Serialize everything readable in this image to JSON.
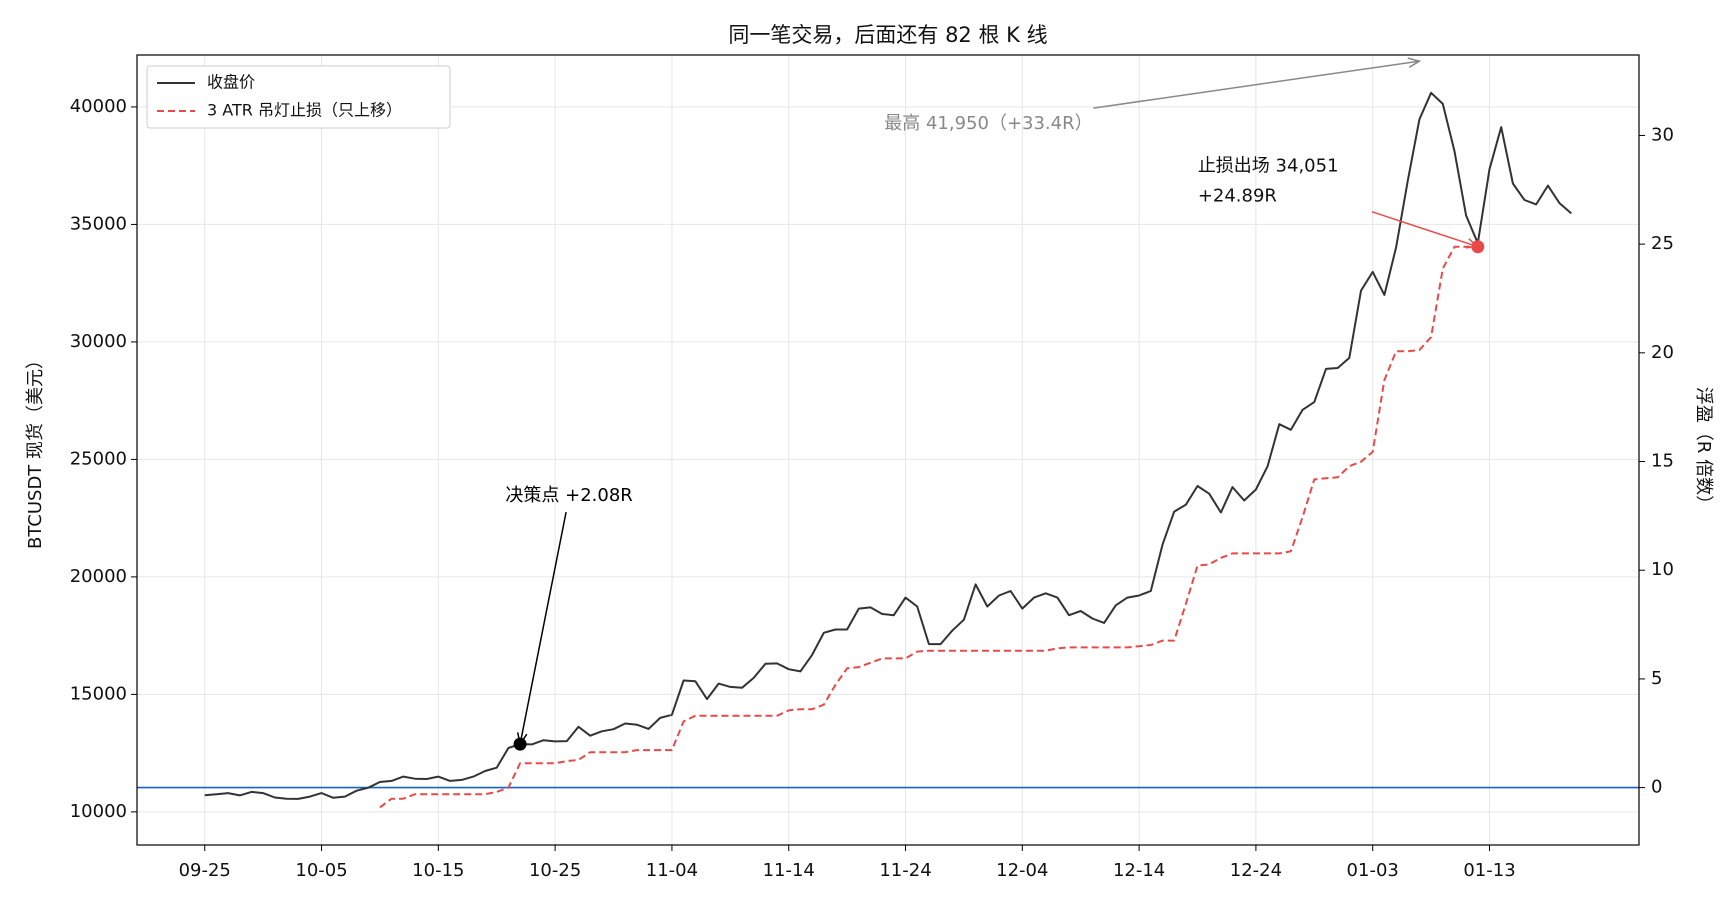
{
  "chart_data": {
    "type": "line",
    "title": "同一笔交易，后面还有 82 根 K 线",
    "ylabel": "BTCUSDT 现货（美元）",
    "y2label": "浮盈（R 倍数）",
    "x": [
      "09-25",
      "09-26",
      "09-27",
      "09-28",
      "09-29",
      "09-30",
      "10-01",
      "10-02",
      "10-03",
      "10-04",
      "10-05",
      "10-06",
      "10-07",
      "10-08",
      "10-09",
      "10-10",
      "10-11",
      "10-12",
      "10-13",
      "10-14",
      "10-15",
      "10-16",
      "10-17",
      "10-18",
      "10-19",
      "10-20",
      "10-21",
      "10-22",
      "10-23",
      "10-24",
      "10-25",
      "10-26",
      "10-27",
      "10-28",
      "10-29",
      "10-30",
      "10-31",
      "11-01",
      "11-02",
      "11-03",
      "11-04",
      "11-05",
      "11-06",
      "11-07",
      "11-08",
      "11-09",
      "11-10",
      "11-11",
      "11-12",
      "11-13",
      "11-14",
      "11-15",
      "11-16",
      "11-17",
      "11-18",
      "11-19",
      "11-20",
      "11-21",
      "11-22",
      "11-23",
      "11-24",
      "11-25",
      "11-26",
      "11-27",
      "11-28",
      "11-29",
      "11-30",
      "12-01",
      "12-02",
      "12-03",
      "12-04",
      "12-05",
      "12-06",
      "12-07",
      "12-08",
      "12-09",
      "12-10",
      "12-11",
      "12-12",
      "12-13",
      "12-14",
      "12-15",
      "12-16",
      "12-17",
      "12-18",
      "12-19",
      "12-20",
      "12-21",
      "12-22",
      "12-23",
      "12-24",
      "12-25",
      "12-26",
      "12-27",
      "12-28",
      "12-29",
      "12-30",
      "12-31",
      "01-01",
      "01-02",
      "01-03",
      "01-04",
      "01-05",
      "01-06",
      "01-07",
      "01-08",
      "01-09",
      "01-10",
      "01-11",
      "01-12",
      "01-13",
      "01-14",
      "01-15",
      "01-16",
      "01-17",
      "01-18",
      "01-19",
      "01-20"
    ],
    "series": [
      {
        "name": "收盘价",
        "color": "#333333",
        "dash": false,
        "values": [
          10705,
          10750,
          10800,
          10700,
          10850,
          10800,
          10610,
          10560,
          10550,
          10650,
          10800,
          10600,
          10650,
          10900,
          11030,
          11270,
          11320,
          11500,
          11410,
          11400,
          11500,
          11320,
          11360,
          11500,
          11740,
          11880,
          12720,
          12883,
          12870,
          13050,
          13000,
          13010,
          13620,
          13240,
          13430,
          13520,
          13760,
          13710,
          13530,
          14000,
          14130,
          15590,
          15560,
          14800,
          15460,
          15320,
          15280,
          15700,
          16300,
          16320,
          16070,
          15980,
          16680,
          17620,
          17760,
          17760,
          18650,
          18700,
          18420,
          18370,
          19120,
          18740,
          17140,
          17140,
          17710,
          18180,
          19680,
          18740,
          19210,
          19400,
          18650,
          19120,
          19300,
          19120,
          18370,
          18550,
          18230,
          18040,
          18790,
          19120,
          19210,
          19400,
          21370,
          22780,
          23070,
          23870,
          23540,
          22740,
          23820,
          23250,
          23720,
          24710,
          26500,
          26260,
          27110,
          27440,
          28850,
          28890,
          29320,
          32180,
          32980,
          32000,
          34020,
          36840,
          39470,
          40600,
          40130,
          38110,
          35380,
          34200,
          37350,
          39140,
          36740,
          36040,
          35850,
          36650,
          35900,
          35470
        ]
      },
      {
        "name": "3 ATR 吊灯止损（只上移）",
        "color": "#e84a4a",
        "dash": true,
        "values": [
          null,
          null,
          null,
          null,
          null,
          null,
          null,
          null,
          null,
          null,
          null,
          null,
          null,
          null,
          null,
          10190,
          10560,
          10560,
          10750,
          10750,
          10750,
          10750,
          10750,
          10750,
          10750,
          10850,
          11030,
          12070,
          12070,
          12070,
          12070,
          12160,
          12210,
          12540,
          12540,
          12540,
          12540,
          12630,
          12630,
          12630,
          12630,
          13850,
          14090,
          14090,
          14090,
          14090,
          14090,
          14090,
          14090,
          14090,
          14320,
          14370,
          14370,
          14560,
          15400,
          16110,
          16160,
          16350,
          16530,
          16530,
          16530,
          16820,
          16860,
          16860,
          16860,
          16860,
          16860,
          16860,
          16860,
          16860,
          16860,
          16860,
          16860,
          16960,
          17000,
          17000,
          17000,
          17000,
          17000,
          17000,
          17050,
          17100,
          17290,
          17290,
          18840,
          20480,
          20530,
          20810,
          21000,
          21000,
          21000,
          21000,
          21000,
          21090,
          22550,
          24150,
          24200,
          24240,
          24710,
          24900,
          25320,
          28380,
          29600,
          29600,
          29650,
          30210,
          33120,
          34051,
          34051,
          34051,
          null,
          null,
          null,
          null,
          null,
          null,
          null,
          null
        ]
      }
    ],
    "xticks": [
      "09-25",
      "10-05",
      "10-15",
      "10-25",
      "11-04",
      "11-14",
      "11-24",
      "12-04",
      "12-14",
      "12-24",
      "01-03",
      "01-13"
    ],
    "ylim": [
      8590,
      42210
    ],
    "yticks": [
      10000,
      15000,
      20000,
      25000,
      30000,
      35000,
      40000
    ],
    "y2lim": [
      -2.64,
      33.7
    ],
    "y2ticks": [
      0,
      5,
      10,
      15,
      20,
      25,
      30
    ],
    "reference_line": {
      "value": 0,
      "axis": "y2",
      "color": "#1565c0"
    },
    "annotations": [
      {
        "lines": [
          "决策点 +2.08R"
        ],
        "x": "10-22",
        "y": 12883,
        "color": "#000000",
        "marker": true
      },
      {
        "lines": [
          "止损出场 34,051",
          "+24.89R"
        ],
        "x": "01-12",
        "y": 34051,
        "color": "#e84a4a",
        "marker": true
      },
      {
        "lines": [
          "最高 41,950（+33.4R）"
        ],
        "x": "01-07",
        "y": 41950,
        "color": "#888888",
        "marker": false
      }
    ],
    "grid": true,
    "legend": "upper left"
  }
}
